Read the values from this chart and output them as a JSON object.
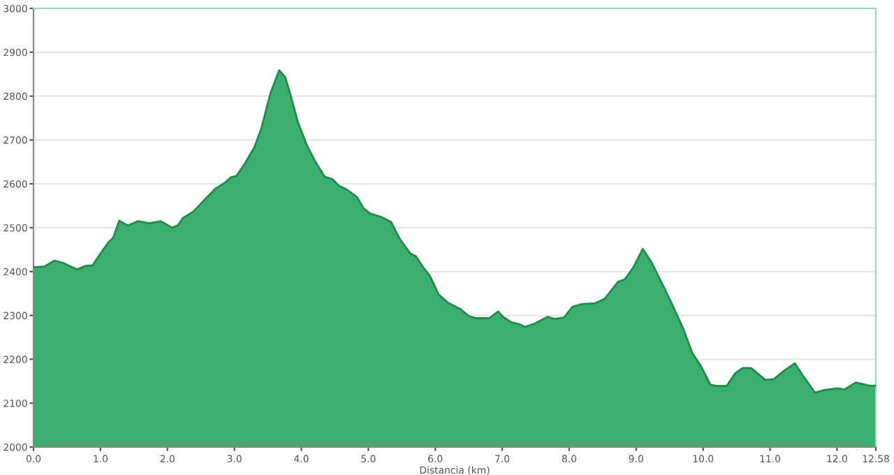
{
  "chart_data": {
    "type": "area",
    "xlabel": "Distancia (km)",
    "x": [
      0,
      0.17,
      0.31,
      0.44,
      0.65,
      0.78,
      0.88,
      0.99,
      1.12,
      1.19,
      1.28,
      1.41,
      1.56,
      1.73,
      1.9,
      2.07,
      2.16,
      2.23,
      2.38,
      2.55,
      2.71,
      2.86,
      2.95,
      3.03,
      3.16,
      3.3,
      3.4,
      3.54,
      3.67,
      3.76,
      3.84,
      3.95,
      4.08,
      4.2,
      4.35,
      4.46,
      4.56,
      4.69,
      4.83,
      4.93,
      5.03,
      5.2,
      5.34,
      5.48,
      5.63,
      5.71,
      5.82,
      5.92,
      6.05,
      6.16,
      6.2,
      6.37,
      6.5,
      6.6,
      6.81,
      6.94,
      7.01,
      7.14,
      7.24,
      7.34,
      7.48,
      7.68,
      7.78,
      7.92,
      8.05,
      8.19,
      8.39,
      8.53,
      8.73,
      8.83,
      8.96,
      9.1,
      9.23,
      9.4,
      9.53,
      9.7,
      9.84,
      9.97,
      10.11,
      10.21,
      10.35,
      10.48,
      10.59,
      10.72,
      10.93,
      11.06,
      11.2,
      11.37,
      11.5,
      11.67,
      11.81,
      12.01,
      12.11,
      12.28,
      12.38,
      12.48,
      12.58
    ],
    "series": [
      {
        "color": "#3aaf6e",
        "values": [
          2410,
          2412,
          2425,
          2420,
          2405,
          2413,
          2414,
          2439,
          2467,
          2477,
          2516,
          2505,
          2515,
          2510,
          2515,
          2500,
          2506,
          2522,
          2536,
          2563,
          2588,
          2603,
          2615,
          2618,
          2647,
          2684,
          2725,
          2807,
          2859,
          2843,
          2802,
          2740,
          2689,
          2653,
          2616,
          2611,
          2596,
          2586,
          2570,
          2544,
          2532,
          2524,
          2513,
          2472,
          2441,
          2435,
          2410,
          2390,
          2348,
          2333,
          2328,
          2315,
          2299,
          2294,
          2294,
          2309,
          2297,
          2284,
          2281,
          2274,
          2281,
          2297,
          2292,
          2295,
          2320,
          2326,
          2328,
          2338,
          2377,
          2382,
          2410,
          2452,
          2421,
          2369,
          2328,
          2271,
          2214,
          2184,
          2142,
          2139,
          2139,
          2168,
          2180,
          2180,
          2153,
          2155,
          2173,
          2191,
          2161,
          2124,
          2130,
          2134,
          2131,
          2147,
          2144,
          2140,
          2140
        ]
      }
    ],
    "xlim": [
      0,
      12.58
    ],
    "xticks": [
      {
        "value": 0,
        "label": "0.0"
      },
      {
        "value": 1,
        "label": "1.0"
      },
      {
        "value": 2,
        "label": "2.0"
      },
      {
        "value": 3,
        "label": "3.0"
      },
      {
        "value": 4,
        "label": "4.0"
      },
      {
        "value": 5,
        "label": "5.0"
      },
      {
        "value": 6,
        "label": "6.0"
      },
      {
        "value": 7,
        "label": "7.0"
      },
      {
        "value": 8,
        "label": "8.0"
      },
      {
        "value": 9,
        "label": "9.0"
      },
      {
        "value": 10,
        "label": "10.0"
      },
      {
        "value": 11,
        "label": "11.0"
      },
      {
        "value": 12,
        "label": "12.0"
      },
      {
        "value": 12.58,
        "label": "12.58"
      }
    ],
    "ylim": [
      2000,
      3000
    ],
    "yticks": [
      2000,
      2100,
      2200,
      2300,
      2400,
      2500,
      2600,
      2700,
      2800,
      2900,
      3000
    ],
    "grid": "y"
  }
}
